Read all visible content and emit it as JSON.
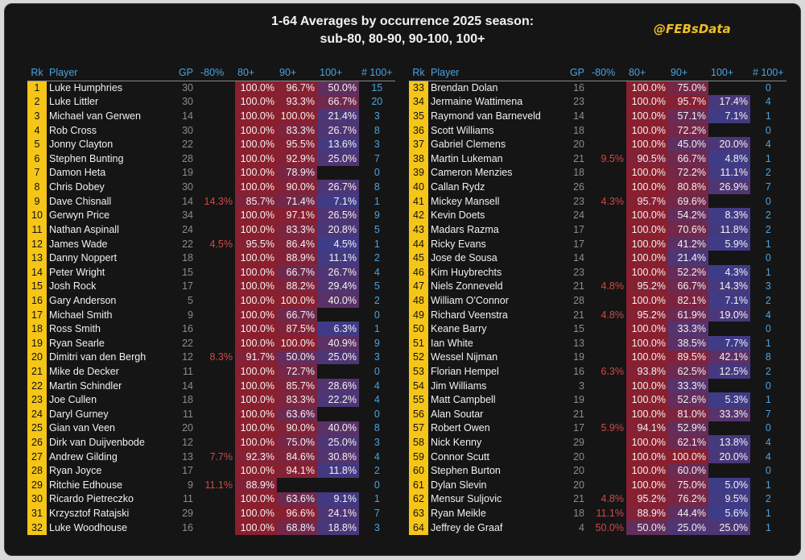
{
  "title_line1": "1-64 Averages by occurrence 2025 season:",
  "title_line2": "sub-80, 80-90, 90-100, 100+",
  "brand": "@FEBsData",
  "headers": {
    "rk": "Rk",
    "player": "Player",
    "gp": "GP",
    "sub80": "-80%",
    "p80": "80+",
    "p90": "90+",
    "p100": "100+",
    "n100": "# 100+"
  },
  "colors": {
    "rank_bg": "#f5c518",
    "header_text": "#4aa3e0",
    "low_text": "#d04848",
    "cell_high": "#8a1f2e",
    "cell_low": "#3a3d8c"
  },
  "rows": [
    {
      "rk": "1",
      "player": "Luke Humphries",
      "gp": "30",
      "sub80": "",
      "p80": "100.0%",
      "p90": "96.7%",
      "p100": "50.0%",
      "n100": "15"
    },
    {
      "rk": "2",
      "player": "Luke Littler",
      "gp": "30",
      "sub80": "",
      "p80": "100.0%",
      "p90": "93.3%",
      "p100": "66.7%",
      "n100": "20"
    },
    {
      "rk": "3",
      "player": "Michael van Gerwen",
      "gp": "14",
      "sub80": "",
      "p80": "100.0%",
      "p90": "100.0%",
      "p100": "21.4%",
      "n100": "3"
    },
    {
      "rk": "4",
      "player": "Rob Cross",
      "gp": "30",
      "sub80": "",
      "p80": "100.0%",
      "p90": "83.3%",
      "p100": "26.7%",
      "n100": "8"
    },
    {
      "rk": "5",
      "player": "Jonny Clayton",
      "gp": "22",
      "sub80": "",
      "p80": "100.0%",
      "p90": "95.5%",
      "p100": "13.6%",
      "n100": "3"
    },
    {
      "rk": "6",
      "player": "Stephen Bunting",
      "gp": "28",
      "sub80": "",
      "p80": "100.0%",
      "p90": "92.9%",
      "p100": "25.0%",
      "n100": "7"
    },
    {
      "rk": "7",
      "player": "Damon Heta",
      "gp": "19",
      "sub80": "",
      "p80": "100.0%",
      "p90": "78.9%",
      "p100": "",
      "n100": "0"
    },
    {
      "rk": "8",
      "player": "Chris Dobey",
      "gp": "30",
      "sub80": "",
      "p80": "100.0%",
      "p90": "90.0%",
      "p100": "26.7%",
      "n100": "8"
    },
    {
      "rk": "9",
      "player": "Dave Chisnall",
      "gp": "14",
      "sub80": "14.3%",
      "p80": "85.7%",
      "p90": "71.4%",
      "p100": "7.1%",
      "n100": "1"
    },
    {
      "rk": "10",
      "player": "Gerwyn Price",
      "gp": "34",
      "sub80": "",
      "p80": "100.0%",
      "p90": "97.1%",
      "p100": "26.5%",
      "n100": "9"
    },
    {
      "rk": "11",
      "player": "Nathan Aspinall",
      "gp": "24",
      "sub80": "",
      "p80": "100.0%",
      "p90": "83.3%",
      "p100": "20.8%",
      "n100": "5"
    },
    {
      "rk": "12",
      "player": "James Wade",
      "gp": "22",
      "sub80": "4.5%",
      "p80": "95.5%",
      "p90": "86.4%",
      "p100": "4.5%",
      "n100": "1"
    },
    {
      "rk": "13",
      "player": "Danny Noppert",
      "gp": "18",
      "sub80": "",
      "p80": "100.0%",
      "p90": "88.9%",
      "p100": "11.1%",
      "n100": "2"
    },
    {
      "rk": "14",
      "player": "Peter Wright",
      "gp": "15",
      "sub80": "",
      "p80": "100.0%",
      "p90": "66.7%",
      "p100": "26.7%",
      "n100": "4"
    },
    {
      "rk": "15",
      "player": "Josh Rock",
      "gp": "17",
      "sub80": "",
      "p80": "100.0%",
      "p90": "88.2%",
      "p100": "29.4%",
      "n100": "5"
    },
    {
      "rk": "16",
      "player": "Gary Anderson",
      "gp": "5",
      "sub80": "",
      "p80": "100.0%",
      "p90": "100.0%",
      "p100": "40.0%",
      "n100": "2"
    },
    {
      "rk": "17",
      "player": "Michael Smith",
      "gp": "9",
      "sub80": "",
      "p80": "100.0%",
      "p90": "66.7%",
      "p100": "",
      "n100": "0"
    },
    {
      "rk": "18",
      "player": "Ross Smith",
      "gp": "16",
      "sub80": "",
      "p80": "100.0%",
      "p90": "87.5%",
      "p100": "6.3%",
      "n100": "1"
    },
    {
      "rk": "19",
      "player": "Ryan Searle",
      "gp": "22",
      "sub80": "",
      "p80": "100.0%",
      "p90": "100.0%",
      "p100": "40.9%",
      "n100": "9"
    },
    {
      "rk": "20",
      "player": "Dimitri van den Bergh",
      "gp": "12",
      "sub80": "8.3%",
      "p80": "91.7%",
      "p90": "50.0%",
      "p100": "25.0%",
      "n100": "3"
    },
    {
      "rk": "21",
      "player": "Mike de Decker",
      "gp": "11",
      "sub80": "",
      "p80": "100.0%",
      "p90": "72.7%",
      "p100": "",
      "n100": "0"
    },
    {
      "rk": "22",
      "player": "Martin Schindler",
      "gp": "14",
      "sub80": "",
      "p80": "100.0%",
      "p90": "85.7%",
      "p100": "28.6%",
      "n100": "4"
    },
    {
      "rk": "23",
      "player": "Joe Cullen",
      "gp": "18",
      "sub80": "",
      "p80": "100.0%",
      "p90": "83.3%",
      "p100": "22.2%",
      "n100": "4"
    },
    {
      "rk": "24",
      "player": "Daryl Gurney",
      "gp": "11",
      "sub80": "",
      "p80": "100.0%",
      "p90": "63.6%",
      "p100": "",
      "n100": "0"
    },
    {
      "rk": "25",
      "player": "Gian van Veen",
      "gp": "20",
      "sub80": "",
      "p80": "100.0%",
      "p90": "90.0%",
      "p100": "40.0%",
      "n100": "8"
    },
    {
      "rk": "26",
      "player": "Dirk van Duijvenbode",
      "gp": "12",
      "sub80": "",
      "p80": "100.0%",
      "p90": "75.0%",
      "p100": "25.0%",
      "n100": "3"
    },
    {
      "rk": "27",
      "player": "Andrew Gilding",
      "gp": "13",
      "sub80": "7.7%",
      "p80": "92.3%",
      "p90": "84.6%",
      "p100": "30.8%",
      "n100": "4"
    },
    {
      "rk": "28",
      "player": "Ryan Joyce",
      "gp": "17",
      "sub80": "",
      "p80": "100.0%",
      "p90": "94.1%",
      "p100": "11.8%",
      "n100": "2"
    },
    {
      "rk": "29",
      "player": "Ritchie Edhouse",
      "gp": "9",
      "sub80": "11.1%",
      "p80": "88.9%",
      "p90": "",
      "p100": "",
      "n100": "0"
    },
    {
      "rk": "30",
      "player": "Ricardo Pietreczko",
      "gp": "11",
      "sub80": "",
      "p80": "100.0%",
      "p90": "63.6%",
      "p100": "9.1%",
      "n100": "1"
    },
    {
      "rk": "31",
      "player": "Krzysztof Ratajski",
      "gp": "29",
      "sub80": "",
      "p80": "100.0%",
      "p90": "96.6%",
      "p100": "24.1%",
      "n100": "7"
    },
    {
      "rk": "32",
      "player": "Luke Woodhouse",
      "gp": "16",
      "sub80": "",
      "p80": "100.0%",
      "p90": "68.8%",
      "p100": "18.8%",
      "n100": "3"
    },
    {
      "rk": "33",
      "player": "Brendan Dolan",
      "gp": "16",
      "sub80": "",
      "p80": "100.0%",
      "p90": "75.0%",
      "p100": "",
      "n100": "0"
    },
    {
      "rk": "34",
      "player": "Jermaine Wattimena",
      "gp": "23",
      "sub80": "",
      "p80": "100.0%",
      "p90": "95.7%",
      "p100": "17.4%",
      "n100": "4"
    },
    {
      "rk": "35",
      "player": "Raymond van Barneveld",
      "gp": "14",
      "sub80": "",
      "p80": "100.0%",
      "p90": "57.1%",
      "p100": "7.1%",
      "n100": "1"
    },
    {
      "rk": "36",
      "player": "Scott Williams",
      "gp": "18",
      "sub80": "",
      "p80": "100.0%",
      "p90": "72.2%",
      "p100": "",
      "n100": "0"
    },
    {
      "rk": "37",
      "player": "Gabriel Clemens",
      "gp": "20",
      "sub80": "",
      "p80": "100.0%",
      "p90": "45.0%",
      "p100": "20.0%",
      "n100": "4"
    },
    {
      "rk": "38",
      "player": "Martin Lukeman",
      "gp": "21",
      "sub80": "9.5%",
      "p80": "90.5%",
      "p90": "66.7%",
      "p100": "4.8%",
      "n100": "1"
    },
    {
      "rk": "39",
      "player": "Cameron Menzies",
      "gp": "18",
      "sub80": "",
      "p80": "100.0%",
      "p90": "72.2%",
      "p100": "11.1%",
      "n100": "2"
    },
    {
      "rk": "40",
      "player": "Callan Rydz",
      "gp": "26",
      "sub80": "",
      "p80": "100.0%",
      "p90": "80.8%",
      "p100": "26.9%",
      "n100": "7"
    },
    {
      "rk": "41",
      "player": "Mickey Mansell",
      "gp": "23",
      "sub80": "4.3%",
      "p80": "95.7%",
      "p90": "69.6%",
      "p100": "",
      "n100": "0"
    },
    {
      "rk": "42",
      "player": "Kevin Doets",
      "gp": "24",
      "sub80": "",
      "p80": "100.0%",
      "p90": "54.2%",
      "p100": "8.3%",
      "n100": "2"
    },
    {
      "rk": "43",
      "player": "Madars Razma",
      "gp": "17",
      "sub80": "",
      "p80": "100.0%",
      "p90": "70.6%",
      "p100": "11.8%",
      "n100": "2"
    },
    {
      "rk": "44",
      "player": "Ricky Evans",
      "gp": "17",
      "sub80": "",
      "p80": "100.0%",
      "p90": "41.2%",
      "p100": "5.9%",
      "n100": "1"
    },
    {
      "rk": "45",
      "player": "Jose de Sousa",
      "gp": "14",
      "sub80": "",
      "p80": "100.0%",
      "p90": "21.4%",
      "p100": "",
      "n100": "0"
    },
    {
      "rk": "46",
      "player": "Kim Huybrechts",
      "gp": "23",
      "sub80": "",
      "p80": "100.0%",
      "p90": "52.2%",
      "p100": "4.3%",
      "n100": "1"
    },
    {
      "rk": "47",
      "player": "Niels Zonneveld",
      "gp": "21",
      "sub80": "4.8%",
      "p80": "95.2%",
      "p90": "66.7%",
      "p100": "14.3%",
      "n100": "3"
    },
    {
      "rk": "48",
      "player": "William O'Connor",
      "gp": "28",
      "sub80": "",
      "p80": "100.0%",
      "p90": "82.1%",
      "p100": "7.1%",
      "n100": "2"
    },
    {
      "rk": "49",
      "player": "Richard Veenstra",
      "gp": "21",
      "sub80": "4.8%",
      "p80": "95.2%",
      "p90": "61.9%",
      "p100": "19.0%",
      "n100": "4"
    },
    {
      "rk": "50",
      "player": "Keane Barry",
      "gp": "15",
      "sub80": "",
      "p80": "100.0%",
      "p90": "33.3%",
      "p100": "",
      "n100": "0"
    },
    {
      "rk": "51",
      "player": "Ian White",
      "gp": "13",
      "sub80": "",
      "p80": "100.0%",
      "p90": "38.5%",
      "p100": "7.7%",
      "n100": "1"
    },
    {
      "rk": "52",
      "player": "Wessel Nijman",
      "gp": "19",
      "sub80": "",
      "p80": "100.0%",
      "p90": "89.5%",
      "p100": "42.1%",
      "n100": "8"
    },
    {
      "rk": "53",
      "player": "Florian Hempel",
      "gp": "16",
      "sub80": "6.3%",
      "p80": "93.8%",
      "p90": "62.5%",
      "p100": "12.5%",
      "n100": "2"
    },
    {
      "rk": "54",
      "player": "Jim Williams",
      "gp": "3",
      "sub80": "",
      "p80": "100.0%",
      "p90": "33.3%",
      "p100": "",
      "n100": "0"
    },
    {
      "rk": "55",
      "player": "Matt Campbell",
      "gp": "19",
      "sub80": "",
      "p80": "100.0%",
      "p90": "52.6%",
      "p100": "5.3%",
      "n100": "1"
    },
    {
      "rk": "56",
      "player": "Alan Soutar",
      "gp": "21",
      "sub80": "",
      "p80": "100.0%",
      "p90": "81.0%",
      "p100": "33.3%",
      "n100": "7"
    },
    {
      "rk": "57",
      "player": "Robert Owen",
      "gp": "17",
      "sub80": "5.9%",
      "p80": "94.1%",
      "p90": "52.9%",
      "p100": "",
      "n100": "0"
    },
    {
      "rk": "58",
      "player": "Nick Kenny",
      "gp": "29",
      "sub80": "",
      "p80": "100.0%",
      "p90": "62.1%",
      "p100": "13.8%",
      "n100": "4"
    },
    {
      "rk": "59",
      "player": "Connor Scutt",
      "gp": "20",
      "sub80": "",
      "p80": "100.0%",
      "p90": "100.0%",
      "p100": "20.0%",
      "n100": "4"
    },
    {
      "rk": "60",
      "player": "Stephen Burton",
      "gp": "20",
      "sub80": "",
      "p80": "100.0%",
      "p90": "60.0%",
      "p100": "",
      "n100": "0"
    },
    {
      "rk": "61",
      "player": "Dylan Slevin",
      "gp": "20",
      "sub80": "",
      "p80": "100.0%",
      "p90": "75.0%",
      "p100": "5.0%",
      "n100": "1"
    },
    {
      "rk": "62",
      "player": "Mensur Suljovic",
      "gp": "21",
      "sub80": "4.8%",
      "p80": "95.2%",
      "p90": "76.2%",
      "p100": "9.5%",
      "n100": "2"
    },
    {
      "rk": "63",
      "player": "Ryan Meikle",
      "gp": "18",
      "sub80": "11.1%",
      "p80": "88.9%",
      "p90": "44.4%",
      "p100": "5.6%",
      "n100": "1"
    },
    {
      "rk": "64",
      "player": "Jeffrey de Graaf",
      "gp": "4",
      "sub80": "50.0%",
      "p80": "50.0%",
      "p90": "25.0%",
      "p100": "25.0%",
      "n100": "1"
    }
  ]
}
